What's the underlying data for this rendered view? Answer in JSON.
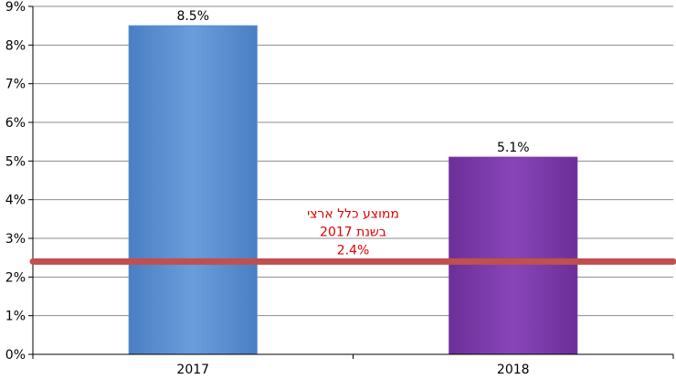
{
  "chart_data": {
    "type": "bar",
    "categories": [
      "2017",
      "2018"
    ],
    "values": [
      8.5,
      5.1
    ],
    "data_labels": [
      "8.5%",
      "5.1%"
    ],
    "ylim": [
      0,
      9
    ],
    "y_ticks": [
      0,
      1,
      2,
      3,
      4,
      5,
      6,
      7,
      8,
      9
    ],
    "y_tick_labels": [
      "0%",
      "1%",
      "2%",
      "3%",
      "4%",
      "5%",
      "6%",
      "7%",
      "8%",
      "9%"
    ],
    "bar_colors": [
      "#5a8ed0",
      "#7b3aa8"
    ],
    "grid": true,
    "reference_line": {
      "value": 2.4,
      "color": "#c0504d",
      "label_lines": [
        "ממוצע כלל ארצי",
        "בשנת 2017",
        "2.4%"
      ]
    },
    "annotation_color": "#e00000",
    "title": "",
    "xlabel": "",
    "ylabel": ""
  }
}
